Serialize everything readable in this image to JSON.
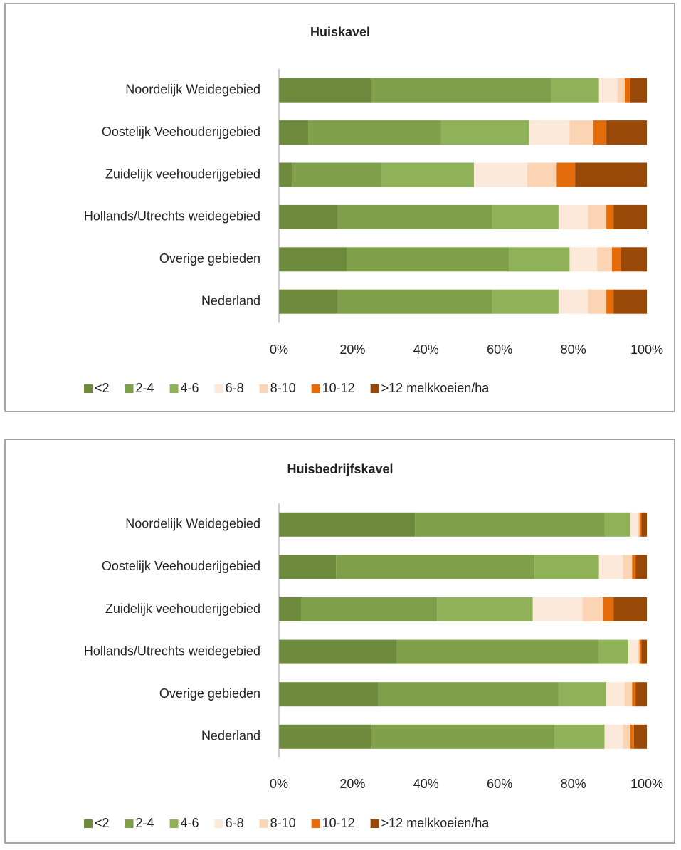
{
  "chart_data": [
    {
      "type": "bar",
      "orientation": "horizontal",
      "stacked": true,
      "title": "Huiskavel",
      "categories": [
        "Noordelijk Weidegebied",
        "Oostelijk Veehouderijgebied",
        "Zuidelijk veehouderijgebied",
        "Hollands/Utrechts weidegebied",
        "Overige gebieden",
        "Nederland"
      ],
      "series": [
        {
          "name": "<2",
          "color": "#6e8b3d",
          "values": [
            25,
            8,
            3.5,
            16,
            18.5,
            16
          ]
        },
        {
          "name": "2-4",
          "color": "#7f9f4b",
          "values": [
            49,
            36,
            24.5,
            42,
            44,
            42
          ]
        },
        {
          "name": "4-6",
          "color": "#8fb157",
          "values": [
            13,
            24,
            25,
            18,
            16.5,
            18
          ]
        },
        {
          "name": "6-8",
          "color": "#fde9d9",
          "values": [
            5,
            11,
            14.5,
            8,
            7.5,
            8
          ]
        },
        {
          "name": "8-10",
          "color": "#fbd4b4",
          "values": [
            2,
            6.5,
            8,
            5,
            4,
            5
          ]
        },
        {
          "name": "10-12",
          "color": "#e46c0a",
          "values": [
            1.5,
            3.5,
            5,
            2,
            2.5,
            2
          ]
        },
        {
          "name": ">12 melkkoeien/ha",
          "color": "#984807",
          "values": [
            4.5,
            11,
            19.5,
            9,
            7,
            9
          ]
        }
      ],
      "xlim": [
        0,
        100
      ],
      "xticks": [
        {
          "value": 0,
          "label": "0%"
        },
        {
          "value": 20,
          "label": "20%"
        },
        {
          "value": 40,
          "label": "40%"
        },
        {
          "value": 60,
          "label": "60%"
        },
        {
          "value": 80,
          "label": "80%"
        },
        {
          "value": 100,
          "label": "100%"
        }
      ],
      "legend": "bottom"
    },
    {
      "type": "bar",
      "orientation": "horizontal",
      "stacked": true,
      "title": "Huisbedrijfskavel",
      "categories": [
        "Noordelijk Weidegebied",
        "Oostelijk Veehouderijgebied",
        "Zuidelijk veehouderijgebied",
        "Hollands/Utrechts weidegebied",
        "Overige gebieden",
        "Nederland"
      ],
      "series": [
        {
          "name": "<2",
          "color": "#6e8b3d",
          "values": [
            37,
            15.5,
            6,
            32,
            27,
            25
          ]
        },
        {
          "name": "2-4",
          "color": "#7f9f4b",
          "values": [
            51.5,
            54,
            37,
            55,
            49,
            50
          ]
        },
        {
          "name": "4-6",
          "color": "#8fb157",
          "values": [
            7,
            17.5,
            26,
            8,
            13,
            13.5
          ]
        },
        {
          "name": "6-8",
          "color": "#fde9d9",
          "values": [
            2,
            6.5,
            13.5,
            2.5,
            5,
            5
          ]
        },
        {
          "name": "8-10",
          "color": "#fbd4b4",
          "values": [
            0.5,
            2.5,
            5.5,
            0.5,
            2,
            2
          ]
        },
        {
          "name": "10-12",
          "color": "#e46c0a",
          "values": [
            0.5,
            1,
            3,
            0.5,
            1,
            1
          ]
        },
        {
          "name": ">12 melkkoeien/ha",
          "color": "#984807",
          "values": [
            1.5,
            3,
            9,
            1.5,
            3,
            3.5
          ]
        }
      ],
      "xlim": [
        0,
        100
      ],
      "xticks": [
        {
          "value": 0,
          "label": "0%"
        },
        {
          "value": 20,
          "label": "20%"
        },
        {
          "value": 40,
          "label": "40%"
        },
        {
          "value": 60,
          "label": "60%"
        },
        {
          "value": 80,
          "label": "80%"
        },
        {
          "value": 100,
          "label": "100%"
        }
      ],
      "legend": "bottom"
    }
  ]
}
